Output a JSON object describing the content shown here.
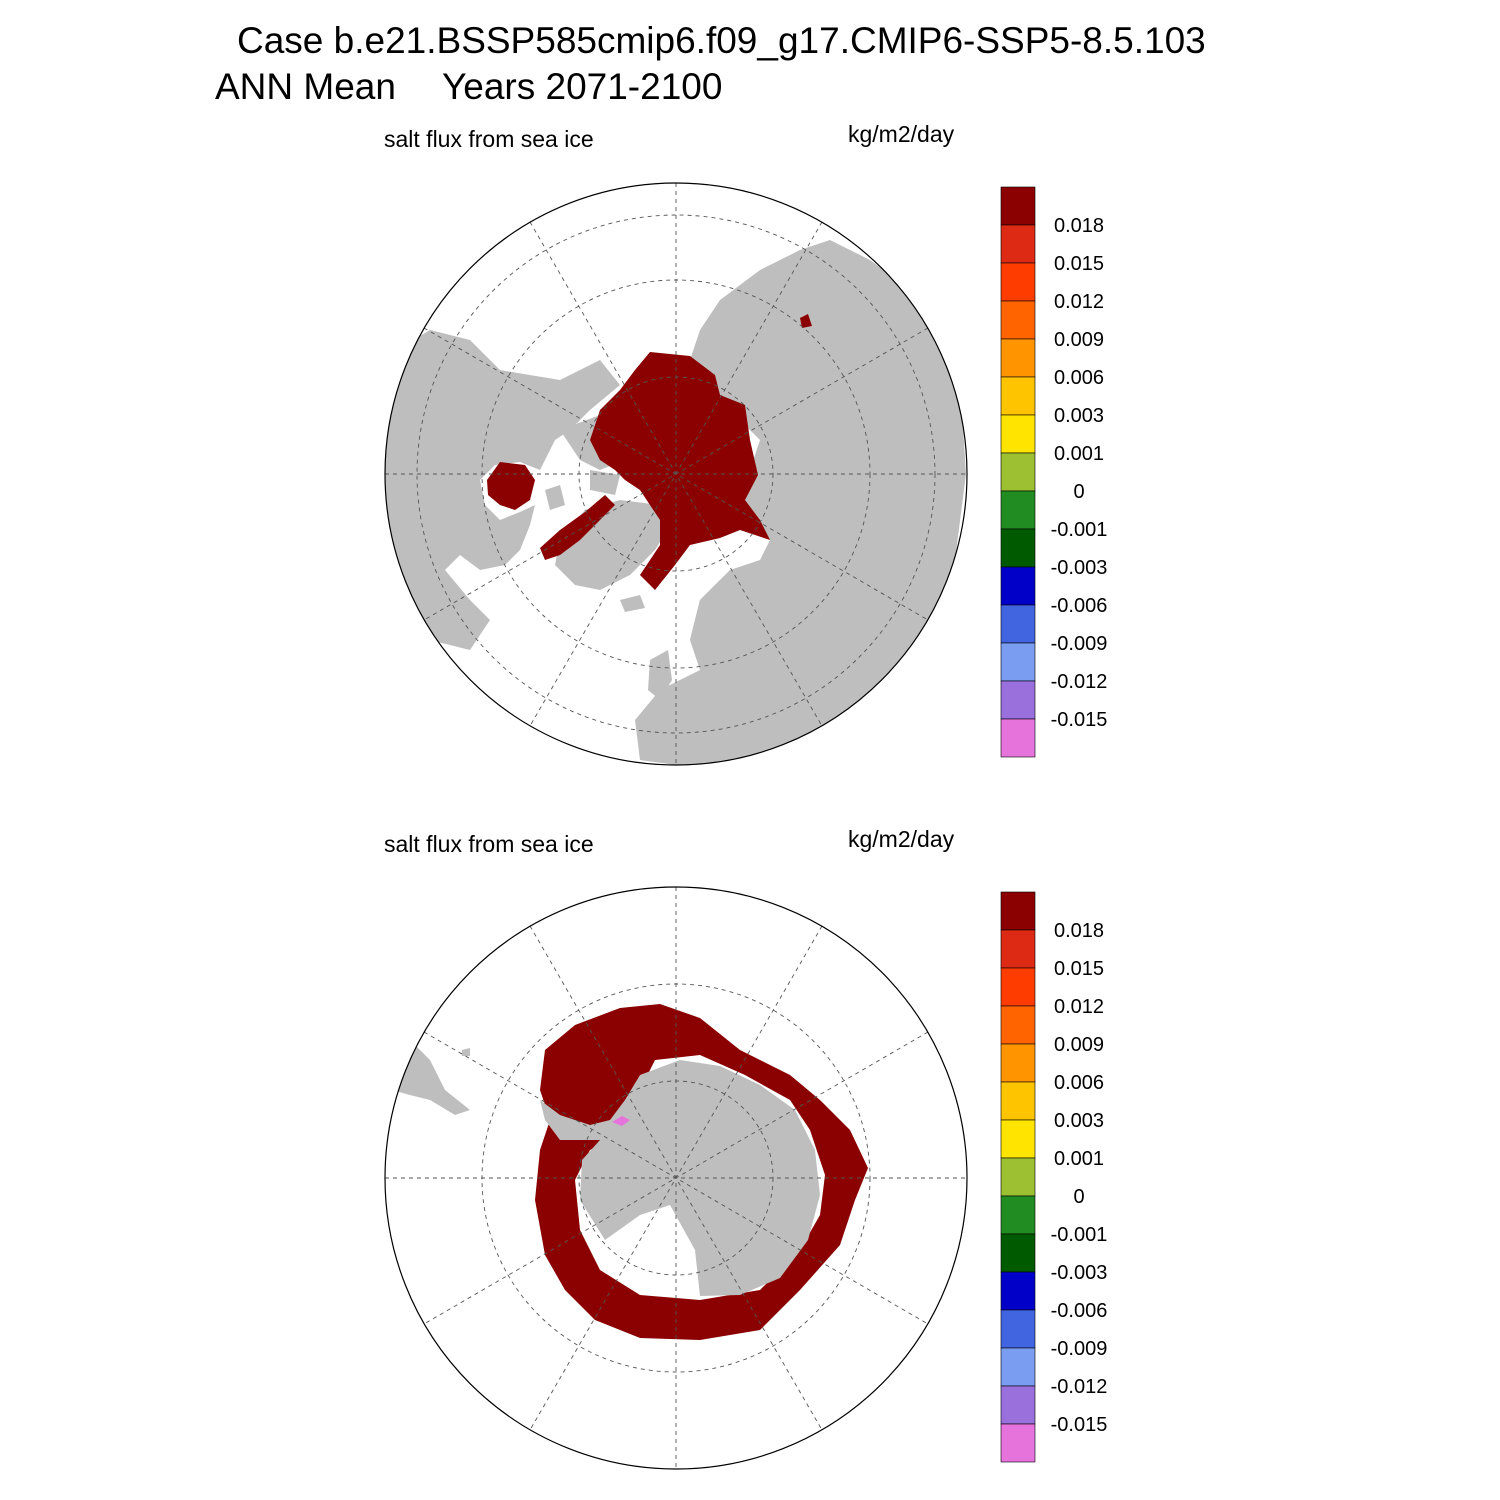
{
  "header": {
    "case_title": "Case b.e21.BSSP585cmip6.f09_g17.CMIP6-SSP5-8.5.103",
    "season": "ANN Mean",
    "years": "Years 2071-2100"
  },
  "colors": {
    "land": "#bebebe",
    "ocean": "#ffffff",
    "flux_max": "#8b0000"
  },
  "colorbar": {
    "colors": [
      "#8b0000",
      "#dc2a14",
      "#ff3c00",
      "#ff6400",
      "#ff9400",
      "#ffc400",
      "#ffe400",
      "#9cc031",
      "#218c21",
      "#005a00",
      "#0000c8",
      "#4164e1",
      "#7a9cf1",
      "#9a70dc",
      "#e672dc"
    ],
    "labels": [
      "0.018",
      "0.015",
      "0.012",
      "0.009",
      "0.006",
      "0.003",
      "0.001",
      "0",
      "-0.001",
      "-0.003",
      "-0.006",
      "-0.009",
      "-0.012",
      "-0.015"
    ]
  },
  "panels": [
    {
      "id": "north",
      "variable": "salt flux from sea ice",
      "units": "kg/m2/day"
    },
    {
      "id": "south",
      "variable": "salt flux from sea ice",
      "units": "kg/m2/day"
    }
  ]
}
